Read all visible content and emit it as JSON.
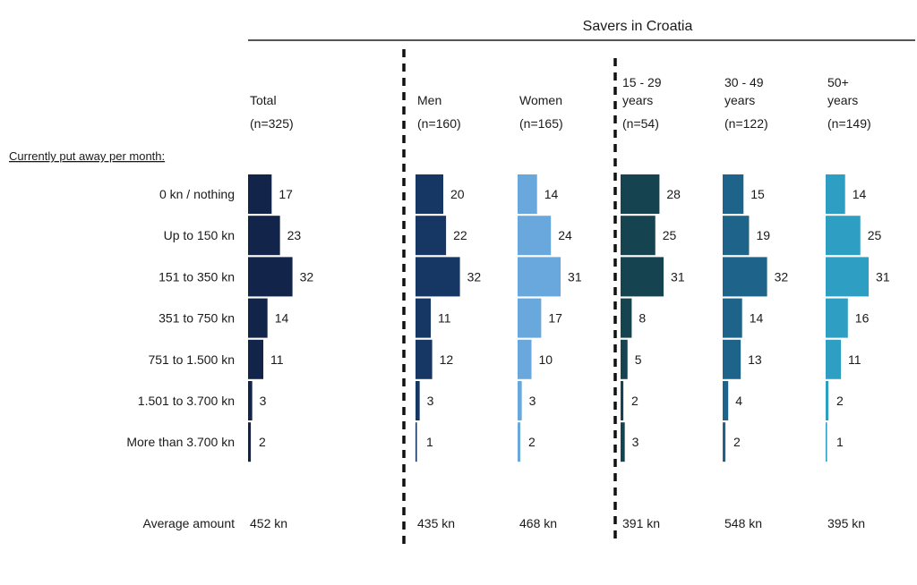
{
  "chart_data": {
    "type": "bar",
    "title": "Savers in Croatia",
    "row_header": "Currently put away per month:",
    "categories": [
      "0 kn / nothing",
      "Up to 150 kn",
      "151 to 350 kn",
      "351 to 750 kn",
      "751 to 1.500 kn",
      "1.501 to 3.700 kn",
      "More than 3.700 kn"
    ],
    "average_label": "Average amount",
    "series": [
      {
        "name_lines": [
          "Total"
        ],
        "n": "(n=325)",
        "values": [
          17,
          23,
          32,
          14,
          11,
          3,
          2
        ],
        "average": "452 kn",
        "color": "#12244a"
      },
      {
        "name_lines": [
          "Men"
        ],
        "n": "(n=160)",
        "values": [
          20,
          22,
          32,
          11,
          12,
          3,
          1
        ],
        "average": "435 kn",
        "color": "#163763"
      },
      {
        "name_lines": [
          "Women"
        ],
        "n": "(n=165)",
        "values": [
          14,
          24,
          31,
          17,
          10,
          3,
          2
        ],
        "average": "468 kn",
        "color": "#69a8dc"
      },
      {
        "name_lines": [
          "15 - 29",
          "years"
        ],
        "n": "(n=54)",
        "values": [
          28,
          25,
          31,
          8,
          5,
          2,
          3
        ],
        "average": "391 kn",
        "color": "#164350"
      },
      {
        "name_lines": [
          "30 - 49",
          "years"
        ],
        "n": "(n=122)",
        "values": [
          15,
          19,
          32,
          14,
          13,
          4,
          2
        ],
        "average": "548 kn",
        "color": "#1e6389"
      },
      {
        "name_lines": [
          "50+",
          "years"
        ],
        "n": "(n=149)",
        "values": [
          14,
          25,
          31,
          16,
          11,
          2,
          1
        ],
        "average": "395 kn",
        "color": "#2e9fc3"
      }
    ]
  }
}
